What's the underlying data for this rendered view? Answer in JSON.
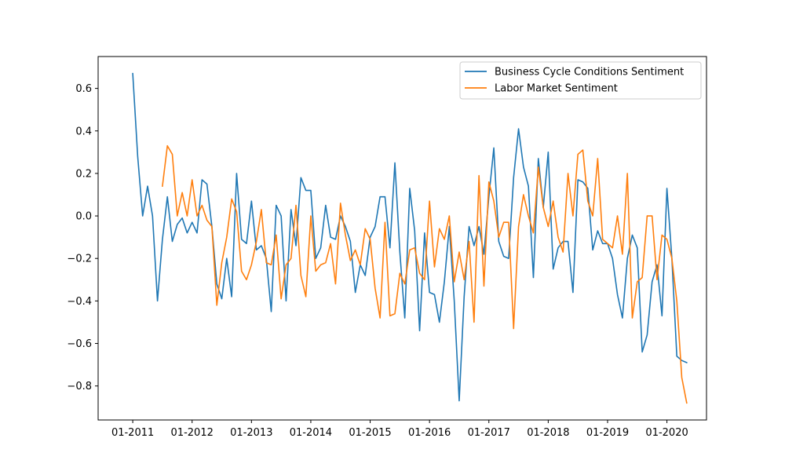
{
  "chart_data": {
    "type": "line",
    "title": "",
    "xlabel": "",
    "ylabel": "",
    "x_start": "2011-01",
    "x_ticks": [
      "01-2011",
      "01-2012",
      "01-2013",
      "01-2014",
      "01-2015",
      "01-2016",
      "01-2017",
      "01-2018",
      "01-2019",
      "01-2020"
    ],
    "y_ticks": [
      0.6,
      0.4,
      0.2,
      0.0,
      -0.2,
      -0.4,
      -0.6,
      -0.8
    ],
    "y_tick_labels": [
      "0.6",
      "0.4",
      "0.2",
      "0.0",
      "−0.2",
      "−0.4",
      "−0.6",
      "−0.8"
    ],
    "ylim": [
      -0.96,
      0.75
    ],
    "xlim": [
      "2010-06",
      "2020-09"
    ],
    "grid": false,
    "legend_position": "top-right",
    "series": [
      {
        "name": "Business Cycle Conditions Sentiment",
        "color": "#1f77b4",
        "start": "2011-01",
        "values": [
          0.67,
          0.28,
          0.0,
          0.14,
          0.0,
          -0.4,
          -0.11,
          0.09,
          -0.12,
          -0.04,
          -0.01,
          -0.08,
          -0.03,
          -0.08,
          0.17,
          0.15,
          -0.05,
          -0.32,
          -0.39,
          -0.2,
          -0.38,
          0.2,
          -0.11,
          -0.13,
          0.07,
          -0.16,
          -0.14,
          -0.2,
          -0.45,
          0.05,
          0.0,
          -0.4,
          0.03,
          -0.14,
          0.18,
          0.12,
          0.12,
          -0.2,
          -0.15,
          0.05,
          -0.1,
          -0.11,
          0.0,
          -0.05,
          -0.12,
          -0.36,
          -0.23,
          -0.28,
          -0.1,
          -0.05,
          0.09,
          0.09,
          -0.15,
          0.25,
          -0.17,
          -0.48,
          0.13,
          -0.07,
          -0.54,
          -0.08,
          -0.36,
          -0.37,
          -0.5,
          -0.31,
          -0.05,
          -0.4,
          -0.87,
          -0.38,
          -0.05,
          -0.14,
          -0.05,
          -0.18,
          0.09,
          0.32,
          -0.12,
          -0.19,
          -0.2,
          0.18,
          0.41,
          0.23,
          0.14,
          -0.29,
          0.27,
          0.04,
          0.3,
          -0.25,
          -0.15,
          -0.12,
          -0.12,
          -0.36,
          0.17,
          0.16,
          0.13,
          -0.16,
          -0.07,
          -0.13,
          -0.13,
          -0.2,
          -0.37,
          -0.48,
          -0.2,
          -0.09,
          -0.15,
          -0.64,
          -0.56,
          -0.31,
          -0.23,
          -0.47,
          0.13,
          -0.2,
          -0.66,
          -0.68,
          -0.69
        ]
      },
      {
        "name": "Labor Market Sentiment",
        "color": "#ff7f0e",
        "start": "2011-07",
        "values": [
          0.14,
          0.33,
          0.29,
          0.0,
          0.11,
          0.0,
          0.17,
          0.0,
          0.05,
          -0.02,
          -0.05,
          -0.42,
          -0.22,
          -0.1,
          0.08,
          0.02,
          -0.26,
          -0.3,
          -0.23,
          -0.12,
          0.03,
          -0.22,
          -0.23,
          -0.09,
          -0.39,
          -0.23,
          -0.2,
          0.05,
          -0.28,
          -0.38,
          0.0,
          -0.26,
          -0.23,
          -0.22,
          -0.13,
          -0.32,
          0.06,
          -0.09,
          -0.21,
          -0.16,
          -0.23,
          -0.06,
          -0.11,
          -0.34,
          -0.48,
          -0.03,
          -0.47,
          -0.46,
          -0.27,
          -0.32,
          -0.16,
          -0.15,
          -0.27,
          -0.3,
          0.07,
          -0.24,
          -0.06,
          -0.11,
          0.0,
          -0.31,
          -0.17,
          -0.3,
          -0.12,
          -0.5,
          0.19,
          -0.33,
          0.16,
          0.07,
          -0.1,
          -0.03,
          -0.03,
          -0.53,
          -0.05,
          0.1,
          0.0,
          -0.08,
          0.23,
          0.04,
          -0.05,
          0.07,
          -0.1,
          -0.17,
          0.2,
          0.0,
          0.29,
          0.31,
          0.07,
          0.0,
          0.27,
          -0.11,
          -0.13,
          -0.15,
          0.0,
          -0.18,
          0.2,
          -0.48,
          -0.31,
          -0.29,
          0.0,
          0.0,
          -0.3,
          -0.09,
          -0.11,
          -0.2,
          -0.4,
          -0.76,
          -0.88
        ]
      }
    ]
  }
}
